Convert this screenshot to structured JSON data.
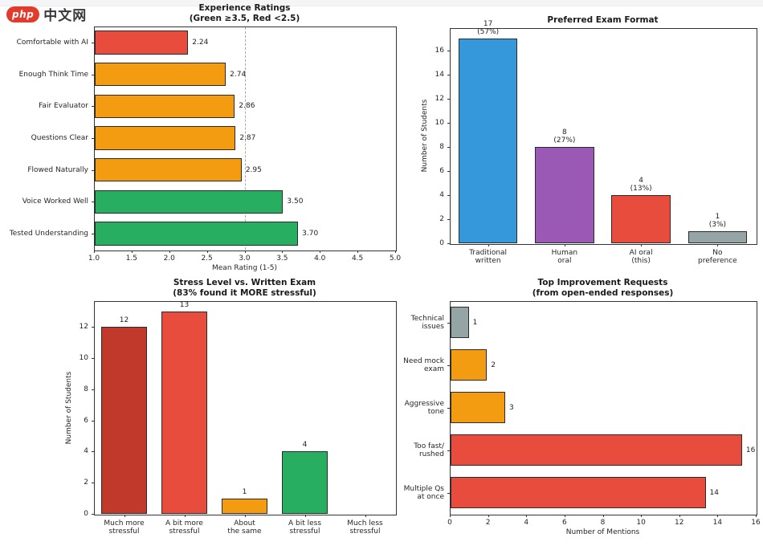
{
  "page": {
    "logo_badge": "php",
    "logo_text": "中文网"
  },
  "chart_data": [
    {
      "id": "experience",
      "type": "barh",
      "title": "Experience Ratings",
      "subtitle": "(Green ≥3.5, Red <2.5)",
      "categories": [
        [
          "Comfortable with AI"
        ],
        [
          "Enough Think Time"
        ],
        [
          "Fair Evaluator"
        ],
        [
          "Questions Clear"
        ],
        [
          "Flowed Naturally"
        ],
        [
          "Voice Worked Well"
        ],
        [
          "Tested Understanding"
        ]
      ],
      "values": [
        2.24,
        2.74,
        2.86,
        2.87,
        2.95,
        3.5,
        3.7
      ],
      "value_labels": [
        "2.24",
        "2.74",
        "2.86",
        "2.87",
        "2.95",
        "3.50",
        "3.70"
      ],
      "colors": [
        "#e74c3c",
        "#f39c12",
        "#f39c12",
        "#f39c12",
        "#f39c12",
        "#27ae60",
        "#27ae60"
      ],
      "xlabel": "Mean Rating (1-5)",
      "xlim": [
        1.0,
        5.0
      ],
      "xticks": [
        "1.0",
        "1.5",
        "2.0",
        "2.5",
        "3.0",
        "3.5",
        "4.0",
        "4.5",
        "5.0"
      ],
      "reference_line": 3.0,
      "legend": "none",
      "grid": "off"
    },
    {
      "id": "format",
      "type": "bar",
      "title": "Preferred Exam Format",
      "subtitle": "",
      "categories": [
        [
          "Traditional",
          "written"
        ],
        [
          "Human",
          "oral"
        ],
        [
          "AI oral",
          "(this)"
        ],
        [
          "No",
          "preference"
        ]
      ],
      "values": [
        17,
        8,
        4,
        1
      ],
      "value_labels": [
        [
          "17",
          "(57%)"
        ],
        [
          "8",
          "(27%)"
        ],
        [
          "4",
          "(13%)"
        ],
        [
          "1",
          "(3%)"
        ]
      ],
      "colors": [
        "#3498db",
        "#9b59b6",
        "#e74c3c",
        "#95a5a6"
      ],
      "ylabel": "Number of Students",
      "ylim": [
        0,
        17.85
      ],
      "yticks": [
        "0",
        "2",
        "4",
        "6",
        "8",
        "10",
        "12",
        "14",
        "16"
      ],
      "legend": "none",
      "grid": "off"
    },
    {
      "id": "stress",
      "type": "bar",
      "title": "Stress Level vs. Written Exam",
      "subtitle": "(83% found it MORE stressful)",
      "categories": [
        [
          "Much more",
          "stressful"
        ],
        [
          "A bit more",
          "stressful"
        ],
        [
          "About",
          "the same"
        ],
        [
          "A bit less",
          "stressful"
        ],
        [
          "Much less",
          "stressful"
        ]
      ],
      "values": [
        12,
        13,
        1,
        4,
        0
      ],
      "value_labels": [
        [
          "12"
        ],
        [
          "13"
        ],
        [
          "1"
        ],
        [
          "4"
        ],
        [
          ""
        ]
      ],
      "colors": [
        "#c0392b",
        "#e74c3c",
        "#f39c12",
        "#27ae60",
        "#95a5a6"
      ],
      "ylabel": "Number of Students",
      "ylim": [
        0,
        13.65
      ],
      "yticks": [
        "0",
        "2",
        "4",
        "6",
        "8",
        "10",
        "12"
      ],
      "legend": "none",
      "grid": "off"
    },
    {
      "id": "improvements",
      "type": "barh",
      "title": "Top Improvement Requests",
      "subtitle": "(from open-ended responses)",
      "categories": [
        [
          "Technical",
          "issues"
        ],
        [
          "Need mock",
          "exam"
        ],
        [
          "Aggressive",
          "tone"
        ],
        [
          "Too fast/",
          "rushed"
        ],
        [
          "Multiple Qs",
          "at once"
        ]
      ],
      "values": [
        1,
        2,
        3,
        16,
        14
      ],
      "value_labels": [
        "1",
        "2",
        "3",
        "16",
        "14"
      ],
      "colors": [
        "#95a5a6",
        "#f39c12",
        "#f39c12",
        "#e74c3c",
        "#e74c3c"
      ],
      "xlabel": "Number of Mentions",
      "xlim": [
        0,
        16.8
      ],
      "xticks": [
        "0",
        "2",
        "4",
        "6",
        "8",
        "10",
        "12",
        "14",
        "16"
      ],
      "legend": "none",
      "grid": "off"
    }
  ]
}
